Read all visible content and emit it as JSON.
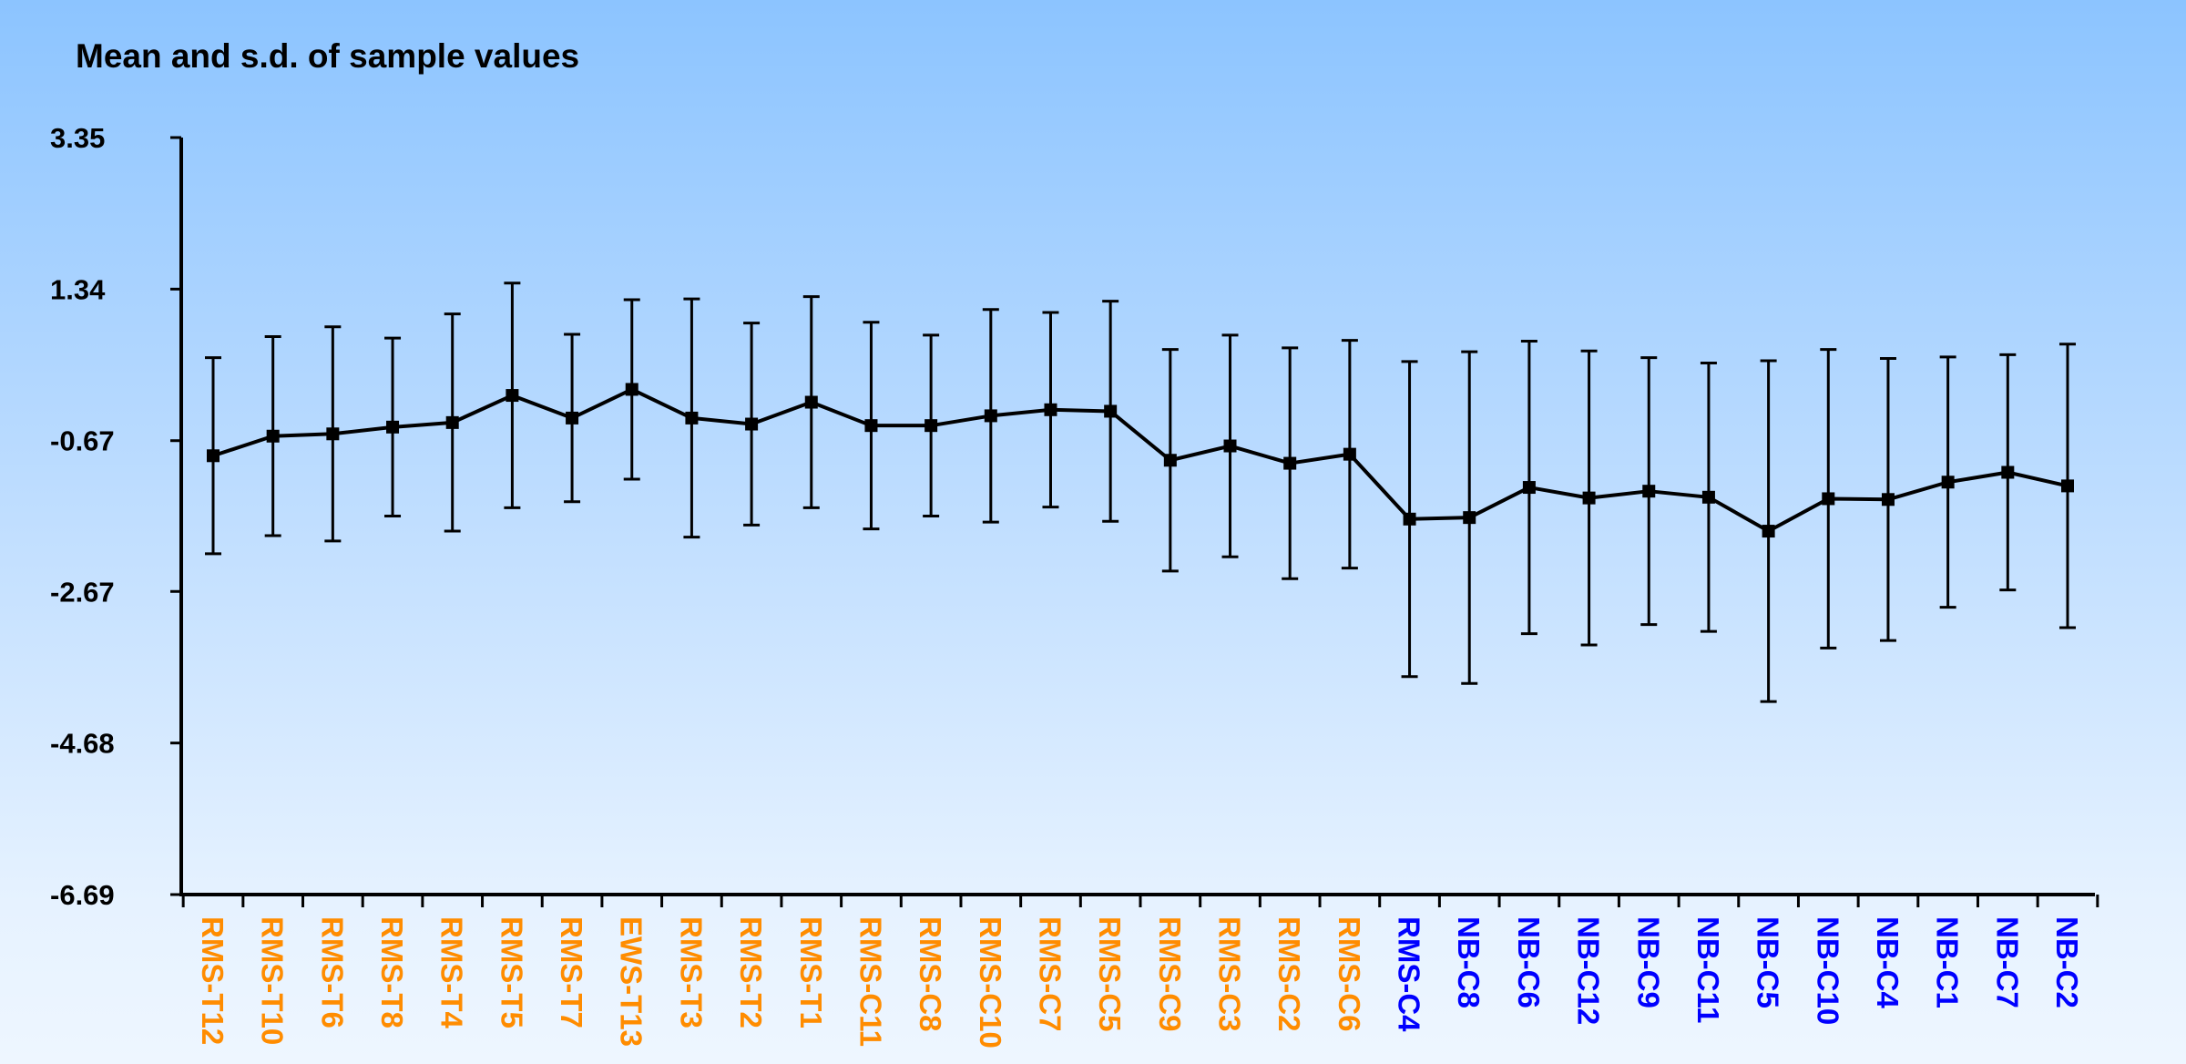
{
  "chart_data": {
    "type": "line",
    "title": "Mean and s.d. of sample values",
    "xlabel": "",
    "ylabel": "",
    "ylim": [
      -6.69,
      3.35
    ],
    "yticks": [
      "3.35",
      "1.34",
      "-0.67",
      "-2.67",
      "-4.68",
      "-6.69"
    ],
    "grid": false,
    "legend": "none",
    "error_bars": "standard deviation",
    "colors": {
      "line": "#000000",
      "group_a": "#ff8c00",
      "group_b": "#0000ff"
    },
    "categories": [
      "RMS-T12",
      "RMS-T10",
      "RMS-T6",
      "RMS-T8",
      "RMS-T4",
      "RMS-T5",
      "RMS-T7",
      "EWS-T13",
      "RMS-T3",
      "RMS-T2",
      "RMS-T1",
      "RMS-C11",
      "RMS-C8",
      "RMS-C10",
      "RMS-C7",
      "RMS-C5",
      "RMS-C9",
      "RMS-C3",
      "RMS-C2",
      "RMS-C6",
      "RMS-C4",
      "NB-C8",
      "NB-C6",
      "NB-C12",
      "NB-C9",
      "NB-C11",
      "NB-C5",
      "NB-C10",
      "NB-C4",
      "NB-C1",
      "NB-C7",
      "NB-C2"
    ],
    "category_colors": [
      "#ff8c00",
      "#ff8c00",
      "#ff8c00",
      "#ff8c00",
      "#ff8c00",
      "#ff8c00",
      "#ff8c00",
      "#ff8c00",
      "#ff8c00",
      "#ff8c00",
      "#ff8c00",
      "#ff8c00",
      "#ff8c00",
      "#ff8c00",
      "#ff8c00",
      "#ff8c00",
      "#ff8c00",
      "#ff8c00",
      "#ff8c00",
      "#ff8c00",
      "#0000ff",
      "#0000ff",
      "#0000ff",
      "#0000ff",
      "#0000ff",
      "#0000ff",
      "#0000ff",
      "#0000ff",
      "#0000ff",
      "#0000ff",
      "#0000ff",
      "#0000ff"
    ],
    "series": [
      {
        "values": [
          -0.87,
          -0.61,
          -0.58,
          -0.49,
          -0.43,
          -0.07,
          -0.37,
          0.01,
          -0.37,
          -0.45,
          -0.16,
          -0.47,
          -0.47,
          -0.34,
          -0.26,
          -0.28,
          -0.93,
          -0.74,
          -0.97,
          -0.85,
          -1.71,
          -1.69,
          -1.29,
          -1.43,
          -1.34,
          -1.42,
          -1.87,
          -1.44,
          -1.45,
          -1.22,
          -1.09,
          -1.27
        ],
        "sd": [
          1.3,
          1.32,
          1.42,
          1.18,
          1.44,
          1.49,
          1.11,
          1.19,
          1.58,
          1.34,
          1.4,
          1.37,
          1.2,
          1.41,
          1.29,
          1.46,
          1.47,
          1.47,
          1.53,
          1.51,
          2.09,
          2.2,
          1.94,
          1.95,
          1.77,
          1.78,
          2.26,
          1.98,
          1.87,
          1.66,
          1.56,
          1.88
        ]
      }
    ]
  }
}
